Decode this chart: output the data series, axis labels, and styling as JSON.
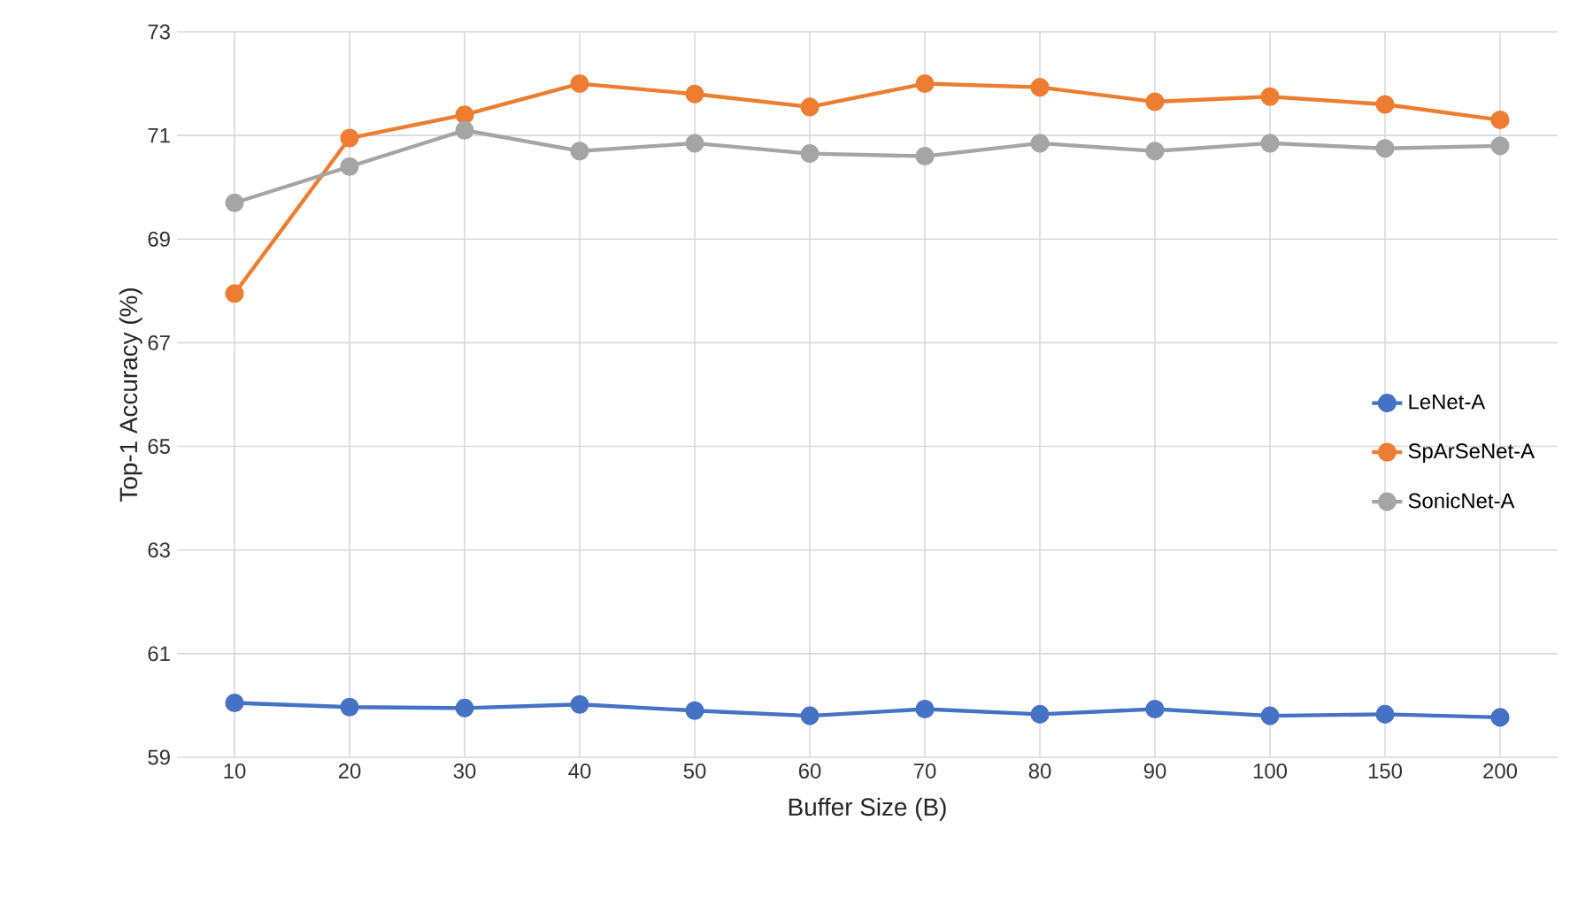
{
  "chart_data": {
    "type": "line",
    "xlabel": "Buffer Size (B)",
    "ylabel": "Top-1 Accuracy (%)",
    "categories": [
      "10",
      "20",
      "30",
      "40",
      "50",
      "60",
      "70",
      "80",
      "90",
      "100",
      "150",
      "200"
    ],
    "series": [
      {
        "name": "LeNet-A",
        "color": "#4472c4",
        "values": [
          60.05,
          59.97,
          59.95,
          60.02,
          59.9,
          59.8,
          59.93,
          59.83,
          59.93,
          59.8,
          59.83,
          59.77
        ]
      },
      {
        "name": "SpArSeNet-A",
        "color": "#ed7d31",
        "values": [
          67.95,
          70.95,
          71.4,
          72.0,
          71.8,
          71.55,
          72.0,
          71.93,
          71.65,
          71.75,
          71.6,
          71.3
        ]
      },
      {
        "name": "SonicNet-A",
        "color": "#a5a5a5",
        "values": [
          69.7,
          70.4,
          71.1,
          70.7,
          70.85,
          70.65,
          70.6,
          70.85,
          70.7,
          70.85,
          70.75,
          70.8
        ]
      }
    ],
    "ylim": [
      59,
      73
    ],
    "yticks": [
      59,
      61,
      63,
      65,
      67,
      69,
      71,
      73
    ],
    "grid": true,
    "legend": "right",
    "marker": "circle",
    "line_style": "solid"
  }
}
